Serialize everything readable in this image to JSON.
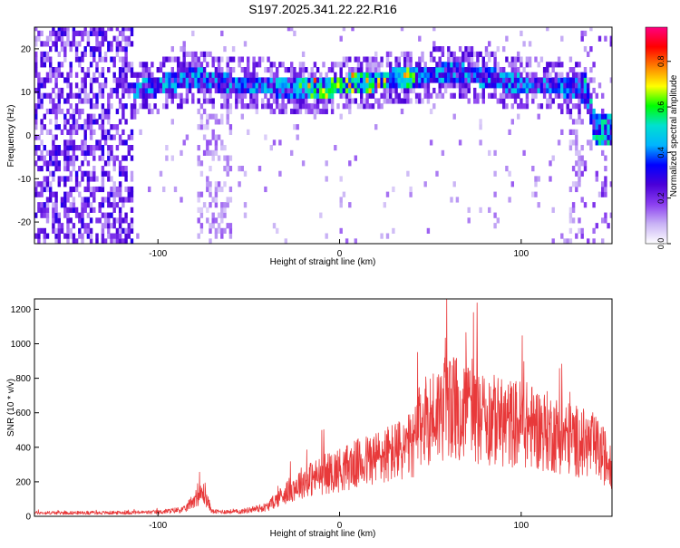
{
  "title": "S197.2025.341.22.22.R16",
  "chart_data": [
    {
      "type": "heatmap",
      "title": "S197.2025.341.22.22.R16",
      "xlabel": "Height of straight line (km)",
      "ylabel": "Frequency (Hz)",
      "xlim": [
        -168,
        150
      ],
      "ylim": [
        -25,
        25
      ],
      "xticks": [
        -100,
        0,
        100
      ],
      "yticks": [
        -20,
        -10,
        0,
        10,
        20
      ],
      "grid": false,
      "colorbar": {
        "label": "Normalized spectral amplitude",
        "range": [
          0,
          0.95
        ],
        "ticks": [
          0.0,
          0.2,
          0.4,
          0.6,
          0.8
        ],
        "tick_labels": [
          "0.0",
          "0.2",
          "0.4",
          "0.6",
          "0.8"
        ],
        "colors": [
          "#ffffff",
          "#c9b3f5",
          "#8b3ff0",
          "#4a00d8",
          "#0000ff",
          "#00b4ff",
          "#00e0d0",
          "#00ff00",
          "#ffff00",
          "#ff8000",
          "#ff0000",
          "#ff0080"
        ]
      },
      "ridge": {
        "x": [
          -120,
          -100,
          -80,
          -60,
          -40,
          -20,
          0,
          20,
          40,
          60,
          80,
          100,
          120,
          135,
          140,
          150
        ],
        "y": [
          9,
          11,
          13,
          11,
          11,
          10,
          11,
          12,
          13,
          14,
          13,
          11,
          11,
          10,
          1,
          1
        ]
      }
    },
    {
      "type": "line",
      "xlabel": "Height of straight line (km)",
      "ylabel": "SNR (10 * v/v)",
      "xlim": [
        -168,
        150
      ],
      "ylim": [
        0,
        1260
      ],
      "xticks": [
        -100,
        0,
        100
      ],
      "yticks": [
        0,
        200,
        400,
        600,
        800,
        1000,
        1200
      ],
      "color": "#e8393a",
      "grid": false,
      "envelope": {
        "x": [
          -168,
          -130,
          -100,
          -85,
          -80,
          -75,
          -70,
          -55,
          -40,
          -30,
          -20,
          -10,
          0,
          10,
          20,
          30,
          40,
          45,
          50,
          60,
          70,
          80,
          90,
          100,
          110,
          120,
          130,
          140,
          150
        ],
        "y": [
          30,
          30,
          35,
          60,
          150,
          200,
          40,
          40,
          80,
          200,
          300,
          350,
          400,
          450,
          500,
          550,
          600,
          800,
          850,
          950,
          900,
          850,
          800,
          800,
          750,
          700,
          650,
          600,
          450
        ]
      }
    }
  ]
}
